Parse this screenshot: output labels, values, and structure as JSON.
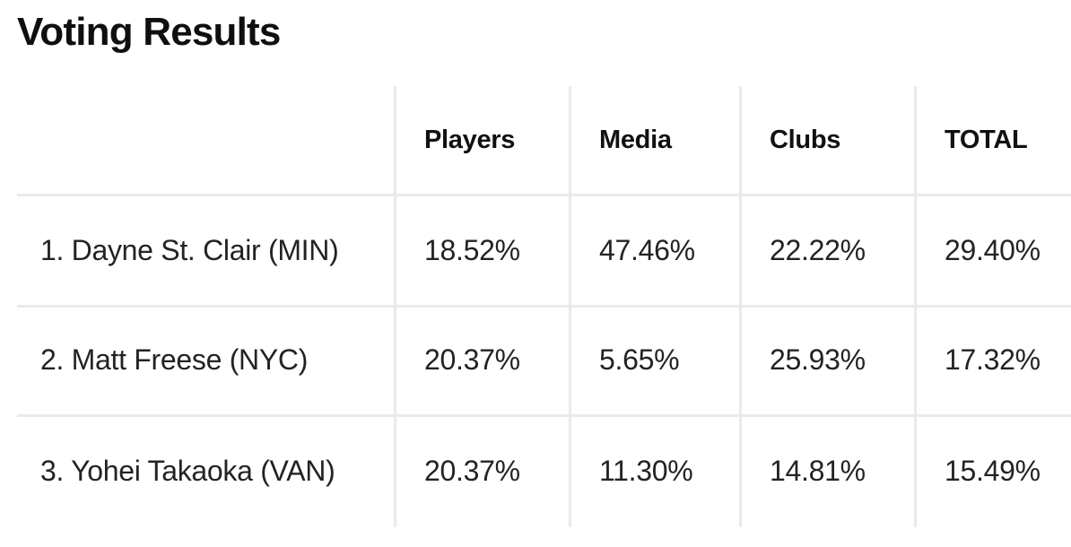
{
  "colors": {
    "background": "#ffffff",
    "title_text": "#0f0f0f",
    "header_text": "#111111",
    "body_text": "#232323",
    "grid_line": "#eaeaea"
  },
  "chart_data": {
    "type": "table",
    "title": "Voting Results",
    "columns": [
      "",
      "Players",
      "Media",
      "Clubs",
      "TOTAL"
    ],
    "rows": [
      {
        "label": "1. Dayne St. Clair (MIN)",
        "values": [
          "18.52%",
          "47.46%",
          "22.22%",
          "29.40%"
        ]
      },
      {
        "label": "2. Matt Freese (NYC)",
        "values": [
          "20.37%",
          "5.65%",
          "25.93%",
          "17.32%"
        ]
      },
      {
        "label": "3. Yohei Takaoka (VAN)",
        "values": [
          "20.37%",
          "11.30%",
          "14.81%",
          "15.49%"
        ]
      }
    ]
  }
}
